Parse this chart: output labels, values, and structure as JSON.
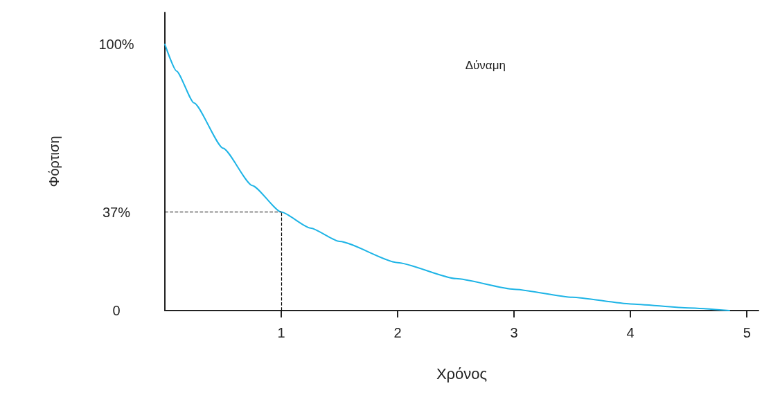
{
  "chart_data": {
    "type": "line",
    "xlabel": "Χρόνος",
    "ylabel": "Φόρτιση",
    "annotations": [
      "Δύναμη"
    ],
    "x": [
      0,
      0.1,
      0.25,
      0.5,
      0.75,
      1,
      1.25,
      1.5,
      2,
      2.5,
      3,
      3.5,
      4,
      4.5,
      4.85
    ],
    "series": [
      {
        "color": "#1eb4e6",
        "values": [
          100,
          90,
          78,
          61,
          47,
          37,
          31,
          26,
          18,
          12,
          8,
          5,
          2.5,
          1,
          0
        ]
      }
    ],
    "xlim": [
      0,
      5.1
    ],
    "xticks": [
      1,
      2,
      3,
      4,
      5
    ],
    "ylim": [
      0,
      112
    ],
    "yticks": [
      {
        "value": 0,
        "label": "0"
      },
      {
        "value": 37,
        "label": "37%"
      },
      {
        "value": 100,
        "label": "100%"
      }
    ],
    "ref_lines": [
      {
        "axis": "y",
        "value": 37,
        "line_style": "dashed",
        "color": "#000000"
      },
      {
        "axis": "x",
        "value": 1,
        "line_style": "dashed",
        "color": "#000000"
      }
    ],
    "grid": false,
    "marker": "none",
    "line_style": "solid"
  }
}
